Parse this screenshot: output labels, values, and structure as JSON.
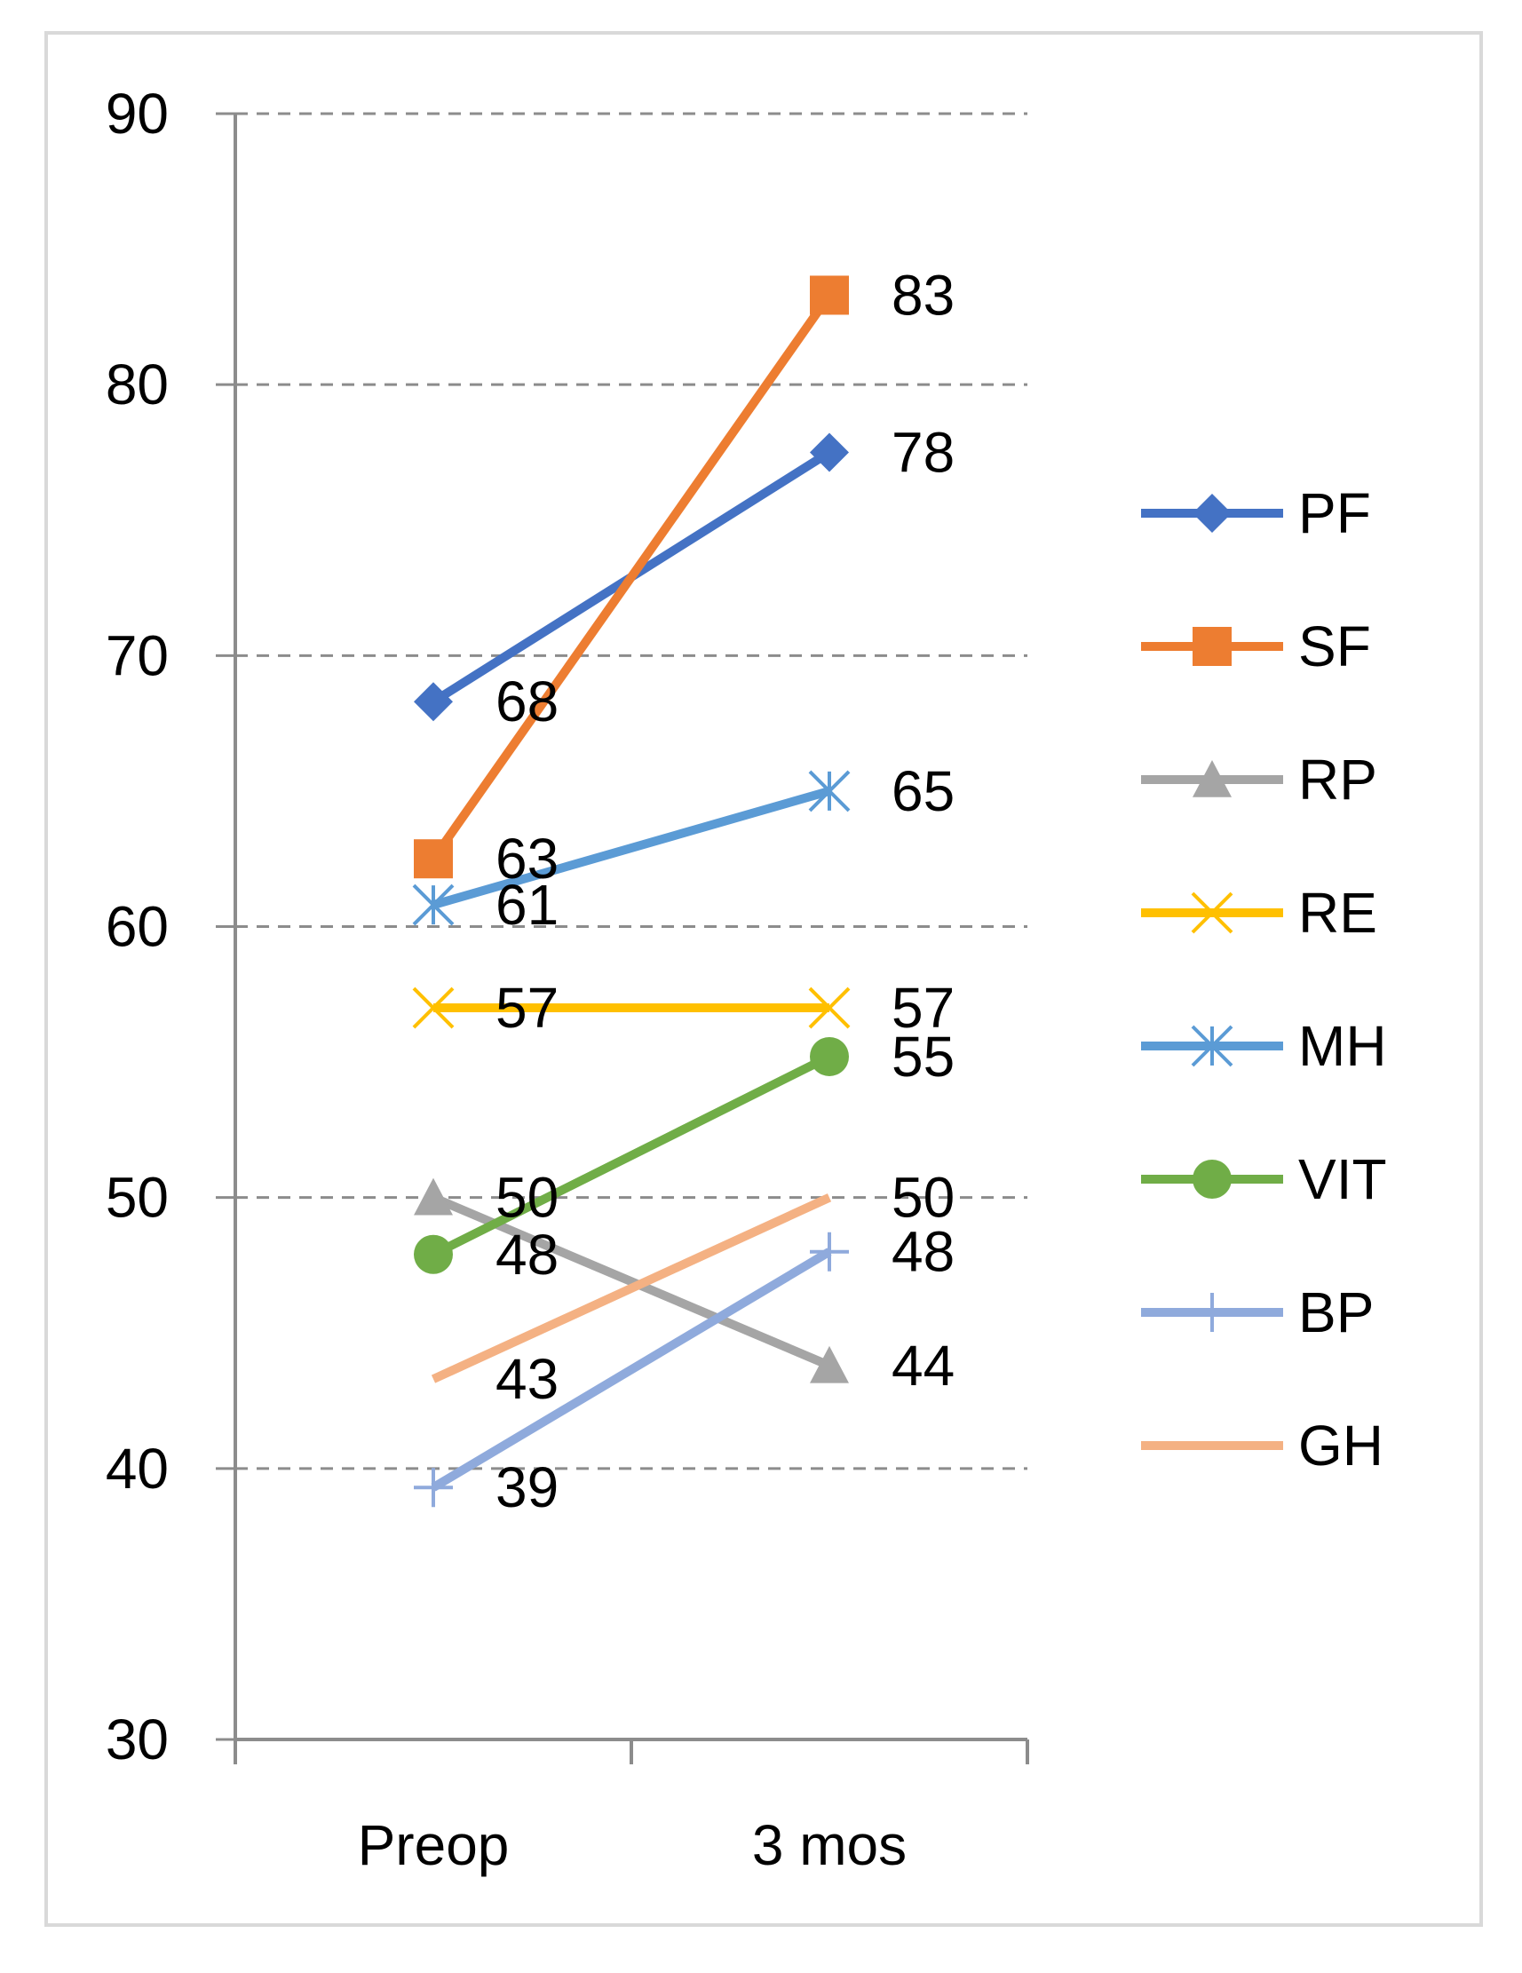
{
  "chart_data": {
    "type": "line",
    "title": "",
    "xlabel": "",
    "ylabel": "",
    "categories": [
      "Preop",
      "3 mos"
    ],
    "ylim": [
      30,
      90
    ],
    "yticks": [
      30,
      40,
      50,
      60,
      70,
      80,
      90
    ],
    "grid": true,
    "legend_position": "right",
    "series": [
      {
        "name": "PF",
        "values": [
          68.3,
          77.5
        ],
        "labels": [
          "68",
          "78"
        ],
        "color": "#4472c4",
        "marker": "diamond"
      },
      {
        "name": "SF",
        "values": [
          62.5,
          83.3
        ],
        "labels": [
          "63",
          "83"
        ],
        "color": "#ed7d31",
        "marker": "square"
      },
      {
        "name": "RP",
        "values": [
          50.0,
          43.8
        ],
        "labels": [
          "50",
          "44"
        ],
        "color": "#a5a5a5",
        "marker": "triangle"
      },
      {
        "name": "RE",
        "values": [
          57.0,
          57.0
        ],
        "labels": [
          "57",
          "57"
        ],
        "color": "#ffc000",
        "marker": "x"
      },
      {
        "name": "MH",
        "values": [
          60.8,
          65.0
        ],
        "labels": [
          "61",
          "65"
        ],
        "color": "#5b9bd5",
        "marker": "star"
      },
      {
        "name": "VIT",
        "values": [
          47.9,
          55.2
        ],
        "labels": [
          "48",
          "55"
        ],
        "color": "#70ad47",
        "marker": "circle"
      },
      {
        "name": "BP",
        "values": [
          39.3,
          48.0
        ],
        "labels": [
          "39",
          "48"
        ],
        "color": "#8faadc",
        "marker": "plus"
      },
      {
        "name": "GH",
        "values": [
          43.3,
          50.0
        ],
        "labels": [
          "43",
          "50"
        ],
        "color": "#f4b183",
        "marker": "none"
      }
    ]
  }
}
